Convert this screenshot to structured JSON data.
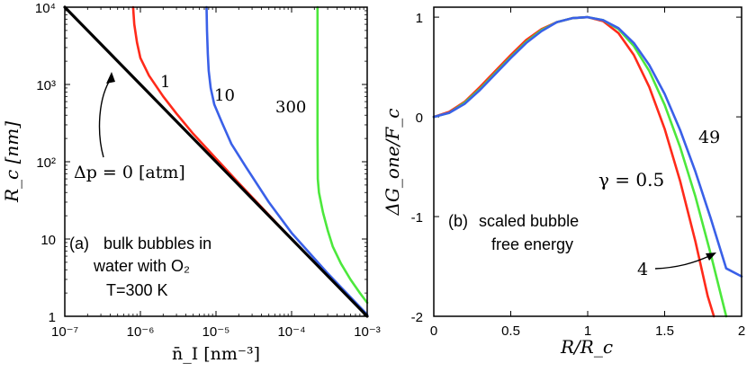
{
  "chart_data": [
    {
      "type": "line",
      "panel_label": "(a)",
      "caption_lines": [
        "bulk bubbles in",
        "water with O₂",
        "T=300 K"
      ],
      "xlabel": "n̄_I [nm⁻³]",
      "ylabel": "R_c [nm]",
      "xscale": "log",
      "yscale": "log",
      "xlim": [
        1e-07,
        0.001
      ],
      "ylim": [
        1,
        10000
      ],
      "x_ticks": [
        {
          "value": 1e-07,
          "label": "10⁻⁷"
        },
        {
          "value": 1e-06,
          "label": "10⁻⁶"
        },
        {
          "value": 1e-05,
          "label": "10⁻⁵"
        },
        {
          "value": 0.0001,
          "label": "10⁻⁴"
        },
        {
          "value": 0.001,
          "label": "10⁻³"
        }
      ],
      "y_ticks": [
        {
          "value": 1,
          "label": "1"
        },
        {
          "value": 10,
          "label": "10"
        },
        {
          "value": 100,
          "label": "10²"
        },
        {
          "value": 1000,
          "label": "10³"
        },
        {
          "value": 10000,
          "label": "10⁴"
        }
      ],
      "annotation": "Δp = 0 [atm]",
      "series": [
        {
          "name": "Δp = 0 [atm]",
          "color": "#000000",
          "points": [
            [
              1e-07,
              10000
            ],
            [
              0.001,
              1
            ]
          ]
        },
        {
          "name": "1",
          "color": "#ff2a1a",
          "points": [
            [
              8e-07,
              10000
            ],
            [
              8.3e-07,
              6000
            ],
            [
              9e-07,
              3500
            ],
            [
              1e-06,
              2200
            ],
            [
              1.3e-06,
              1300
            ],
            [
              2e-06,
              700
            ],
            [
              3e-06,
              420
            ],
            [
              5e-06,
              230
            ],
            [
              1e-05,
              110
            ],
            [
              2e-05,
              53
            ],
            [
              0.0001,
              10
            ],
            [
              0.001,
              1
            ]
          ]
        },
        {
          "name": "10",
          "color": "#3a60e8",
          "points": [
            [
              7.5e-06,
              10000
            ],
            [
              7.6e-06,
              5000
            ],
            [
              7.8e-06,
              2500
            ],
            [
              8e-06,
              1500
            ],
            [
              8.5e-06,
              900
            ],
            [
              9.5e-06,
              550
            ],
            [
              1.2e-05,
              320
            ],
            [
              1.6e-05,
              170
            ],
            [
              2.5e-05,
              85
            ],
            [
              5e-05,
              30
            ],
            [
              0.0001,
              12
            ],
            [
              0.0003,
              3.6
            ],
            [
              0.001,
              1.05
            ]
          ]
        },
        {
          "name": "300",
          "color": "#4ce83c",
          "points": [
            [
              0.00022,
              10000
            ],
            [
              0.00022,
              200
            ],
            [
              0.000222,
              60
            ],
            [
              0.00023,
              40
            ],
            [
              0.00026,
              22
            ],
            [
              0.0003,
              13
            ],
            [
              0.00035,
              8
            ],
            [
              0.00045,
              4.8
            ],
            [
              0.0006,
              3
            ],
            [
              0.0008,
              2
            ],
            [
              0.001,
              1.5
            ]
          ]
        }
      ],
      "curve_labels": [
        "1",
        "10",
        "300"
      ]
    },
    {
      "type": "line",
      "panel_label": "(b)",
      "caption_lines": [
        "scaled bubble",
        "free energy"
      ],
      "xlabel": "R/R_c",
      "ylabel": "ΔG_one/F_c",
      "xlim": [
        0,
        2
      ],
      "ylim": [
        -2,
        1.1
      ],
      "x_ticks": [
        {
          "value": 0,
          "label": "0"
        },
        {
          "value": 0.5,
          "label": "0.5"
        },
        {
          "value": 1,
          "label": "1"
        },
        {
          "value": 1.5,
          "label": "1.5"
        },
        {
          "value": 2,
          "label": "2"
        }
      ],
      "y_ticks": [
        {
          "value": 1,
          "label": "1"
        },
        {
          "value": 0,
          "label": "0"
        },
        {
          "value": -1,
          "label": "-1"
        },
        {
          "value": -2,
          "label": "-2"
        }
      ],
      "gamma_label": "γ = 0.5",
      "series": [
        {
          "name": "γ = 0.5",
          "color": "#ff2a1a",
          "points": [
            [
              0,
              0
            ],
            [
              0.1,
              0.05
            ],
            [
              0.2,
              0.15
            ],
            [
              0.3,
              0.3
            ],
            [
              0.4,
              0.46
            ],
            [
              0.5,
              0.62
            ],
            [
              0.6,
              0.77
            ],
            [
              0.7,
              0.88
            ],
            [
              0.8,
              0.95
            ],
            [
              0.9,
              0.99
            ],
            [
              1.0,
              1.0
            ],
            [
              1.1,
              0.96
            ],
            [
              1.2,
              0.84
            ],
            [
              1.3,
              0.62
            ],
            [
              1.4,
              0.3
            ],
            [
              1.5,
              -0.12
            ],
            [
              1.6,
              -0.64
            ],
            [
              1.7,
              -1.25
            ],
            [
              1.78,
              -1.8
            ],
            [
              1.82,
              -2.0
            ]
          ]
        },
        {
          "name": "4",
          "color": "#4ce83c",
          "points": [
            [
              0,
              0
            ],
            [
              0.1,
              0.04
            ],
            [
              0.2,
              0.14
            ],
            [
              0.3,
              0.28
            ],
            [
              0.4,
              0.44
            ],
            [
              0.5,
              0.6
            ],
            [
              0.6,
              0.75
            ],
            [
              0.7,
              0.87
            ],
            [
              0.8,
              0.95
            ],
            [
              0.9,
              0.99
            ],
            [
              1.0,
              1.0
            ],
            [
              1.1,
              0.97
            ],
            [
              1.2,
              0.88
            ],
            [
              1.3,
              0.71
            ],
            [
              1.4,
              0.46
            ],
            [
              1.5,
              0.12
            ],
            [
              1.6,
              -0.3
            ],
            [
              1.7,
              -0.8
            ],
            [
              1.8,
              -1.38
            ],
            [
              1.9,
              -2.0
            ]
          ]
        },
        {
          "name": "49",
          "color": "#3a60e8",
          "points": [
            [
              0,
              0
            ],
            [
              0.1,
              0.04
            ],
            [
              0.2,
              0.13
            ],
            [
              0.3,
              0.27
            ],
            [
              0.4,
              0.43
            ],
            [
              0.5,
              0.59
            ],
            [
              0.6,
              0.74
            ],
            [
              0.7,
              0.86
            ],
            [
              0.8,
              0.95
            ],
            [
              0.9,
              0.99
            ],
            [
              1.0,
              1.0
            ],
            [
              1.1,
              0.97
            ],
            [
              1.2,
              0.89
            ],
            [
              1.3,
              0.74
            ],
            [
              1.4,
              0.52
            ],
            [
              1.5,
              0.23
            ],
            [
              1.6,
              -0.13
            ],
            [
              1.7,
              -0.55
            ],
            [
              1.8,
              -1.02
            ],
            [
              1.9,
              -1.52
            ],
            [
              2.0,
              -1.6
            ]
          ]
        }
      ],
      "curve_labels": [
        "49",
        "4"
      ]
    }
  ]
}
